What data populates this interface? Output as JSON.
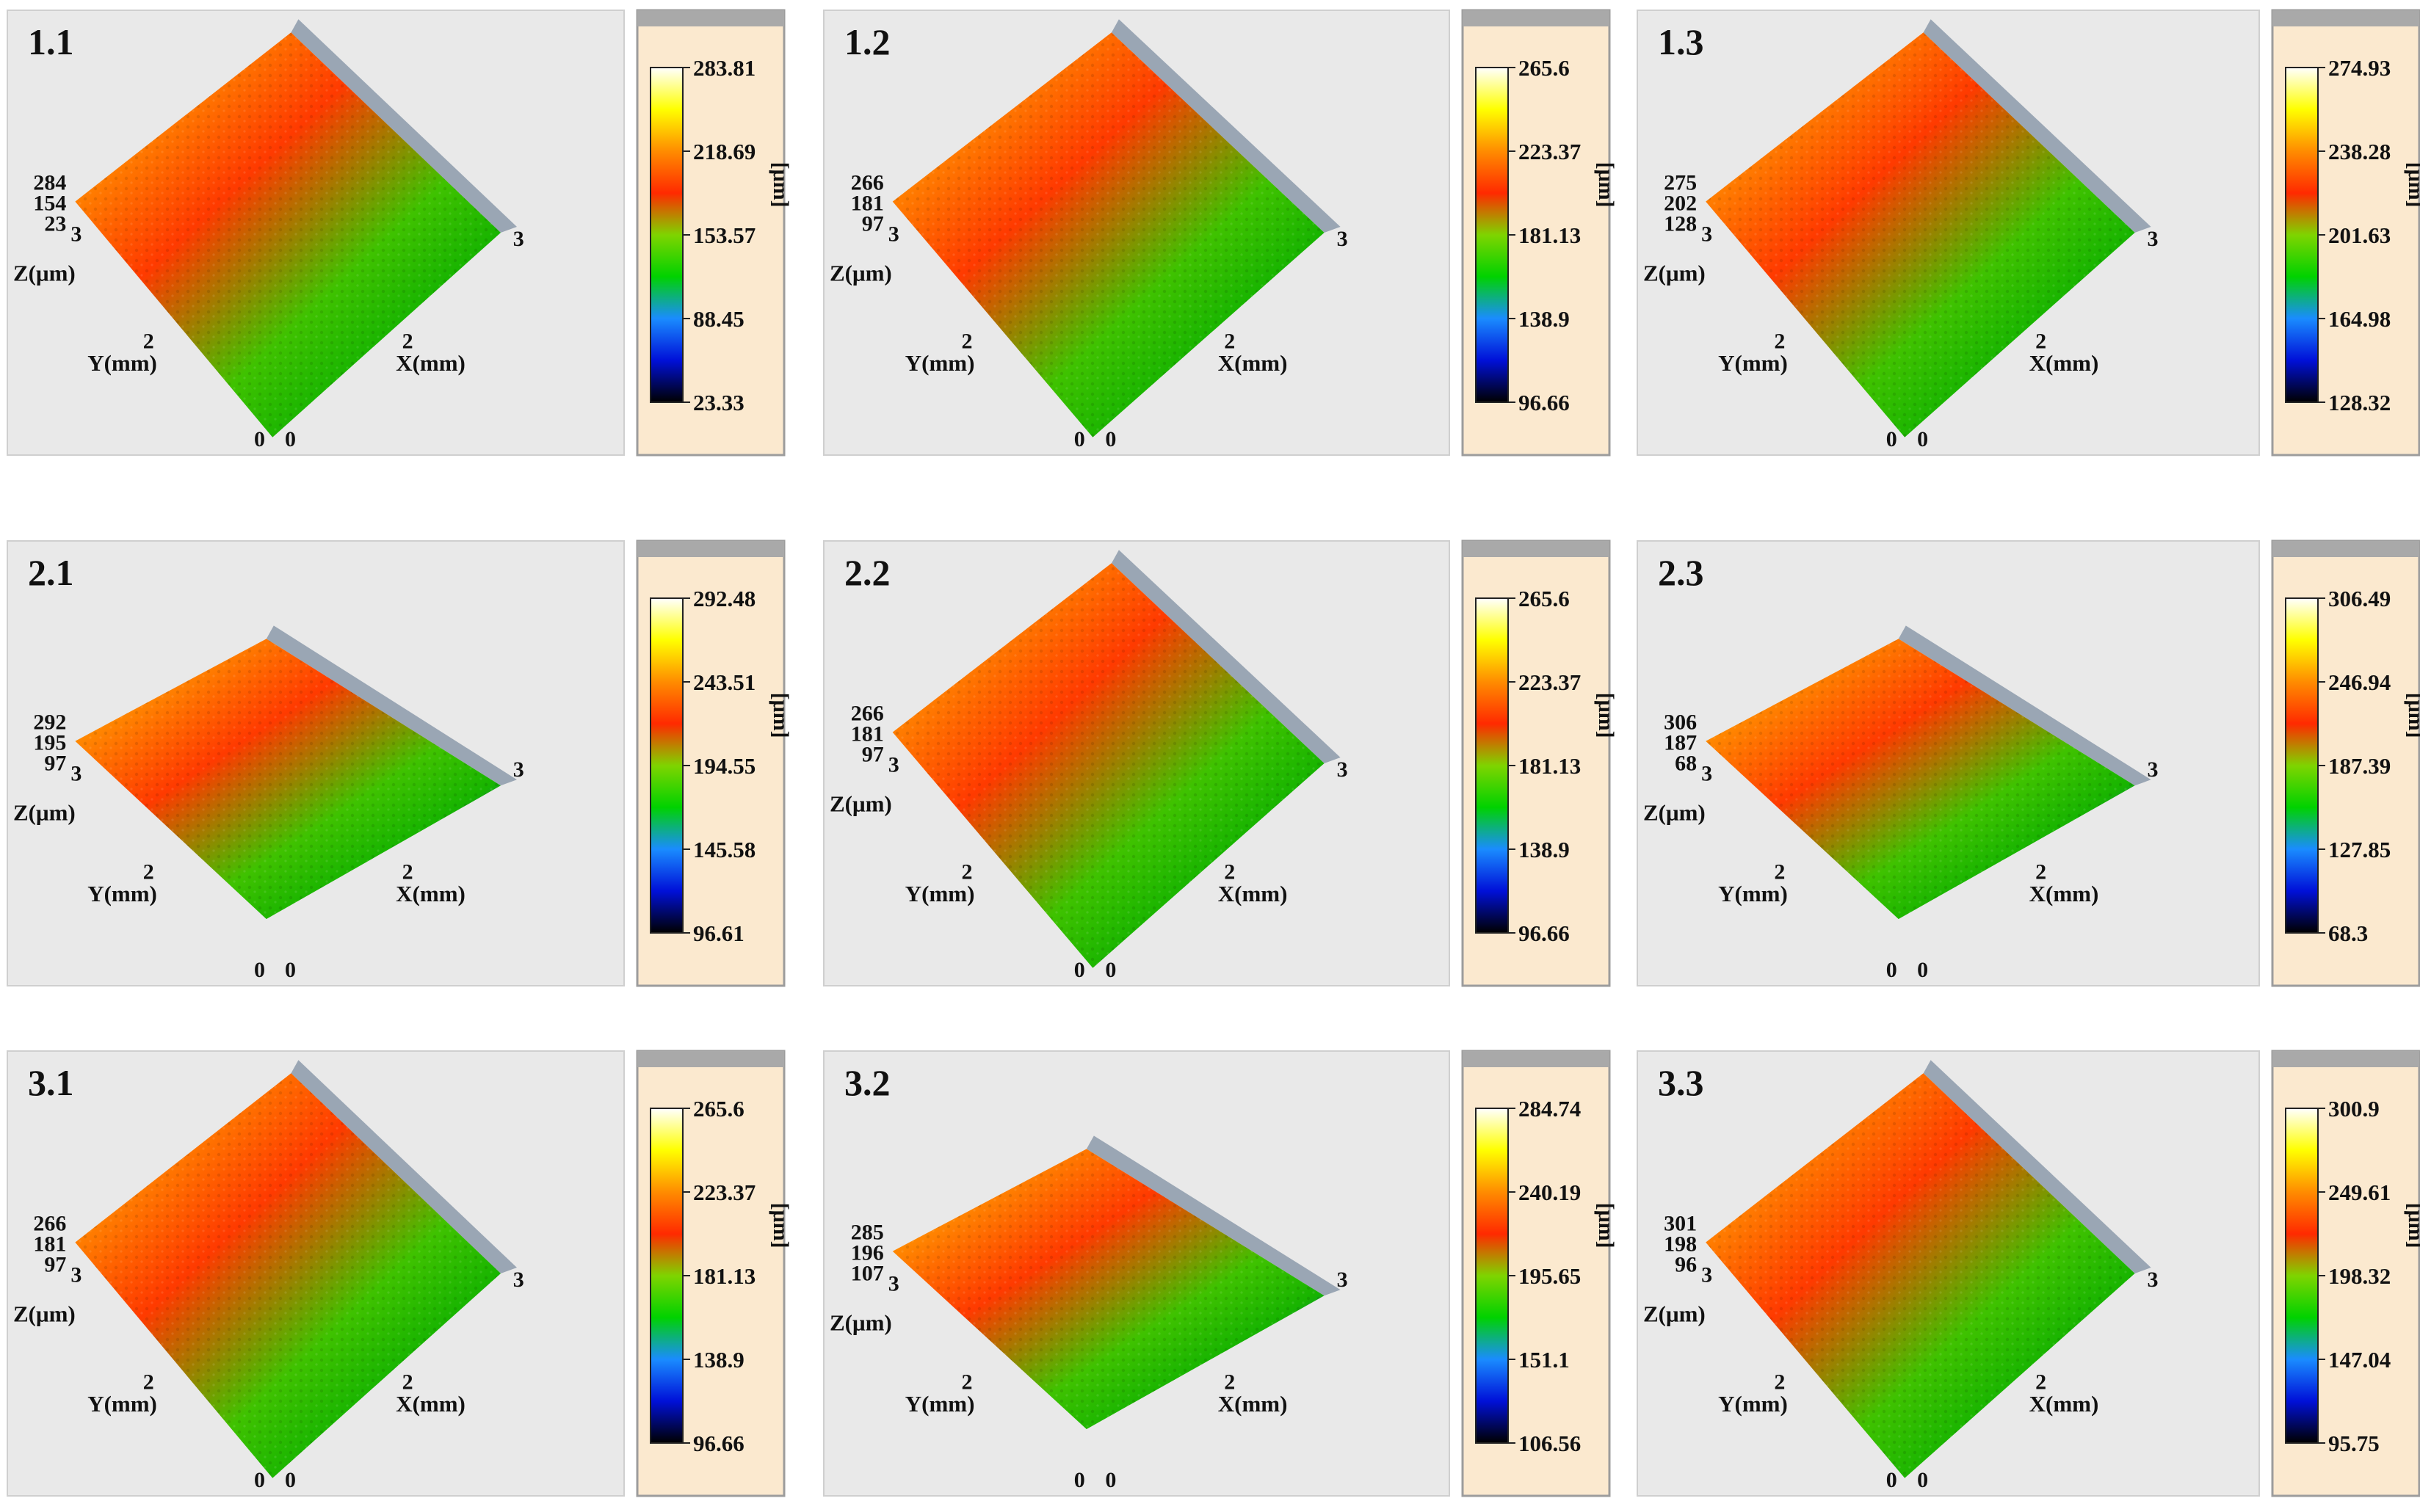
{
  "colors": {
    "panel_bg": "#e9e9e9",
    "scale_bg": "#fbe9cf",
    "colormap": [
      "#000000",
      "#0010d8",
      "#1a8cff",
      "#00d200",
      "#7fd400",
      "#ff2a00",
      "#ff8c00",
      "#ffff00",
      "#ffffff"
    ]
  },
  "chart_data": [
    {
      "type": "heatmap",
      "id": "1.1",
      "label": "1.1",
      "z_axis_label": "Z(μm)",
      "y_axis_label": "Y(mm)",
      "x_axis_label": "X(mm)",
      "z_ticks": [
        "284",
        "154",
        "23"
      ],
      "corner_tick": "3",
      "x_ticks": [
        "2",
        "3"
      ],
      "y_ticks": [
        "2"
      ],
      "origin_ticks": [
        "0",
        "0"
      ],
      "colorbar_unit": "[μm]",
      "colorbar_ticks": [
        "283.81",
        "218.69",
        "153.57",
        "88.45",
        "23.33"
      ],
      "zmin": 23.33,
      "zmax": 283.81,
      "orientation": "tilted",
      "gradient": [
        0.75,
        0.2
      ]
    },
    {
      "type": "heatmap",
      "id": "1.2",
      "label": "1.2",
      "z_axis_label": "Z(μm)",
      "y_axis_label": "Y(mm)",
      "x_axis_label": "X(mm)",
      "z_ticks": [
        "266",
        "181",
        "97"
      ],
      "corner_tick": "3",
      "x_ticks": [
        "2",
        "3"
      ],
      "y_ticks": [
        "2"
      ],
      "origin_ticks": [
        "0",
        "0"
      ],
      "colorbar_unit": "[μm]",
      "colorbar_ticks": [
        "265.6",
        "223.37",
        "181.13",
        "138.9",
        "96.66"
      ],
      "zmin": 96.66,
      "zmax": 265.6,
      "orientation": "tilted",
      "gradient": [
        0.95,
        0.2
      ]
    },
    {
      "type": "heatmap",
      "id": "1.3",
      "label": "1.3",
      "z_axis_label": "Z(μm)",
      "y_axis_label": "Y(mm)",
      "x_axis_label": "X(mm)",
      "z_ticks": [
        "275",
        "202",
        "128"
      ],
      "corner_tick": "3",
      "x_ticks": [
        "2",
        "3"
      ],
      "y_ticks": [
        "2"
      ],
      "origin_ticks": [
        "0",
        "0"
      ],
      "colorbar_unit": "[μm]",
      "colorbar_ticks": [
        "274.93",
        "238.28",
        "201.63",
        "164.98",
        "128.32"
      ],
      "zmin": 128.32,
      "zmax": 274.93,
      "orientation": "tilted",
      "gradient": [
        0.85,
        0.15
      ]
    },
    {
      "type": "heatmap",
      "id": "2.1",
      "label": "2.1",
      "z_axis_label": "Z(μm)",
      "y_axis_label": "Y(mm)",
      "x_axis_label": "X(mm)",
      "z_ticks": [
        "292",
        "195",
        "97"
      ],
      "corner_tick": "3",
      "x_ticks": [
        "2",
        "3"
      ],
      "y_ticks": [
        "2"
      ],
      "origin_ticks": [
        "0",
        "0"
      ],
      "colorbar_unit": "[μm]",
      "colorbar_ticks": [
        "292.48",
        "243.51",
        "194.55",
        "145.58",
        "96.61"
      ],
      "zmin": 96.61,
      "zmax": 292.48,
      "orientation": "flat",
      "gradient": [
        0.85,
        0.25
      ]
    },
    {
      "type": "heatmap",
      "id": "2.2",
      "label": "2.2",
      "z_axis_label": "Z(μm)",
      "y_axis_label": "Y(mm)",
      "x_axis_label": "X(mm)",
      "z_ticks": [
        "266",
        "181",
        "97"
      ],
      "corner_tick": "3",
      "x_ticks": [
        "2",
        "3"
      ],
      "y_ticks": [
        "2"
      ],
      "origin_ticks": [
        "0",
        "0"
      ],
      "colorbar_unit": "[μm]",
      "colorbar_ticks": [
        "265.6",
        "223.37",
        "181.13",
        "138.9",
        "96.66"
      ],
      "zmin": 96.66,
      "zmax": 265.6,
      "orientation": "tilted",
      "gradient": [
        0.95,
        0.2
      ]
    },
    {
      "type": "heatmap",
      "id": "2.3",
      "label": "2.3",
      "z_axis_label": "Z(μm)",
      "y_axis_label": "Y(mm)",
      "x_axis_label": "X(mm)",
      "z_ticks": [
        "306",
        "187",
        "68"
      ],
      "corner_tick": "3",
      "x_ticks": [
        "2",
        "3"
      ],
      "y_ticks": [
        "2"
      ],
      "origin_ticks": [
        "0",
        "0"
      ],
      "colorbar_unit": "[μm]",
      "colorbar_ticks": [
        "306.49",
        "246.94",
        "187.39",
        "127.85",
        "68.3"
      ],
      "zmin": 68.3,
      "zmax": 306.49,
      "orientation": "flat",
      "gradient": [
        0.8,
        0.25
      ]
    },
    {
      "type": "heatmap",
      "id": "3.1",
      "label": "3.1",
      "z_axis_label": "Z(μm)",
      "y_axis_label": "Y(mm)",
      "x_axis_label": "X(mm)",
      "z_ticks": [
        "266",
        "181",
        "97"
      ],
      "corner_tick": "3",
      "x_ticks": [
        "2",
        "3"
      ],
      "y_ticks": [
        "2"
      ],
      "origin_ticks": [
        "0",
        "0"
      ],
      "colorbar_unit": "[μm]",
      "colorbar_ticks": [
        "265.6",
        "223.37",
        "181.13",
        "138.9",
        "96.66"
      ],
      "zmin": 96.66,
      "zmax": 265.6,
      "orientation": "tilted",
      "gradient": [
        0.95,
        0.2
      ]
    },
    {
      "type": "heatmap",
      "id": "3.2",
      "label": "3.2",
      "z_axis_label": "Z(μm)",
      "y_axis_label": "Y(mm)",
      "x_axis_label": "X(mm)",
      "z_ticks": [
        "285",
        "196",
        "107"
      ],
      "corner_tick": "3",
      "x_ticks": [
        "2",
        "3"
      ],
      "y_ticks": [
        "2"
      ],
      "origin_ticks": [
        "0",
        "0"
      ],
      "colorbar_unit": "[μm]",
      "colorbar_ticks": [
        "284.74",
        "240.19",
        "195.65",
        "151.1",
        "106.56"
      ],
      "zmin": 106.56,
      "zmax": 284.74,
      "orientation": "flat",
      "gradient": [
        0.85,
        0.35
      ]
    },
    {
      "type": "heatmap",
      "id": "3.3",
      "label": "3.3",
      "z_axis_label": "Z(μm)",
      "y_axis_label": "Y(mm)",
      "x_axis_label": "X(mm)",
      "z_ticks": [
        "301",
        "198",
        "96"
      ],
      "corner_tick": "3",
      "x_ticks": [
        "2",
        "3"
      ],
      "y_ticks": [
        "2"
      ],
      "origin_ticks": [
        "0",
        "0"
      ],
      "colorbar_unit": "[μm]",
      "colorbar_ticks": [
        "300.9",
        "249.61",
        "198.32",
        "147.04",
        "95.75"
      ],
      "zmin": 95.75,
      "zmax": 300.9,
      "orientation": "tilted",
      "gradient": [
        0.8,
        0.2
      ]
    }
  ]
}
